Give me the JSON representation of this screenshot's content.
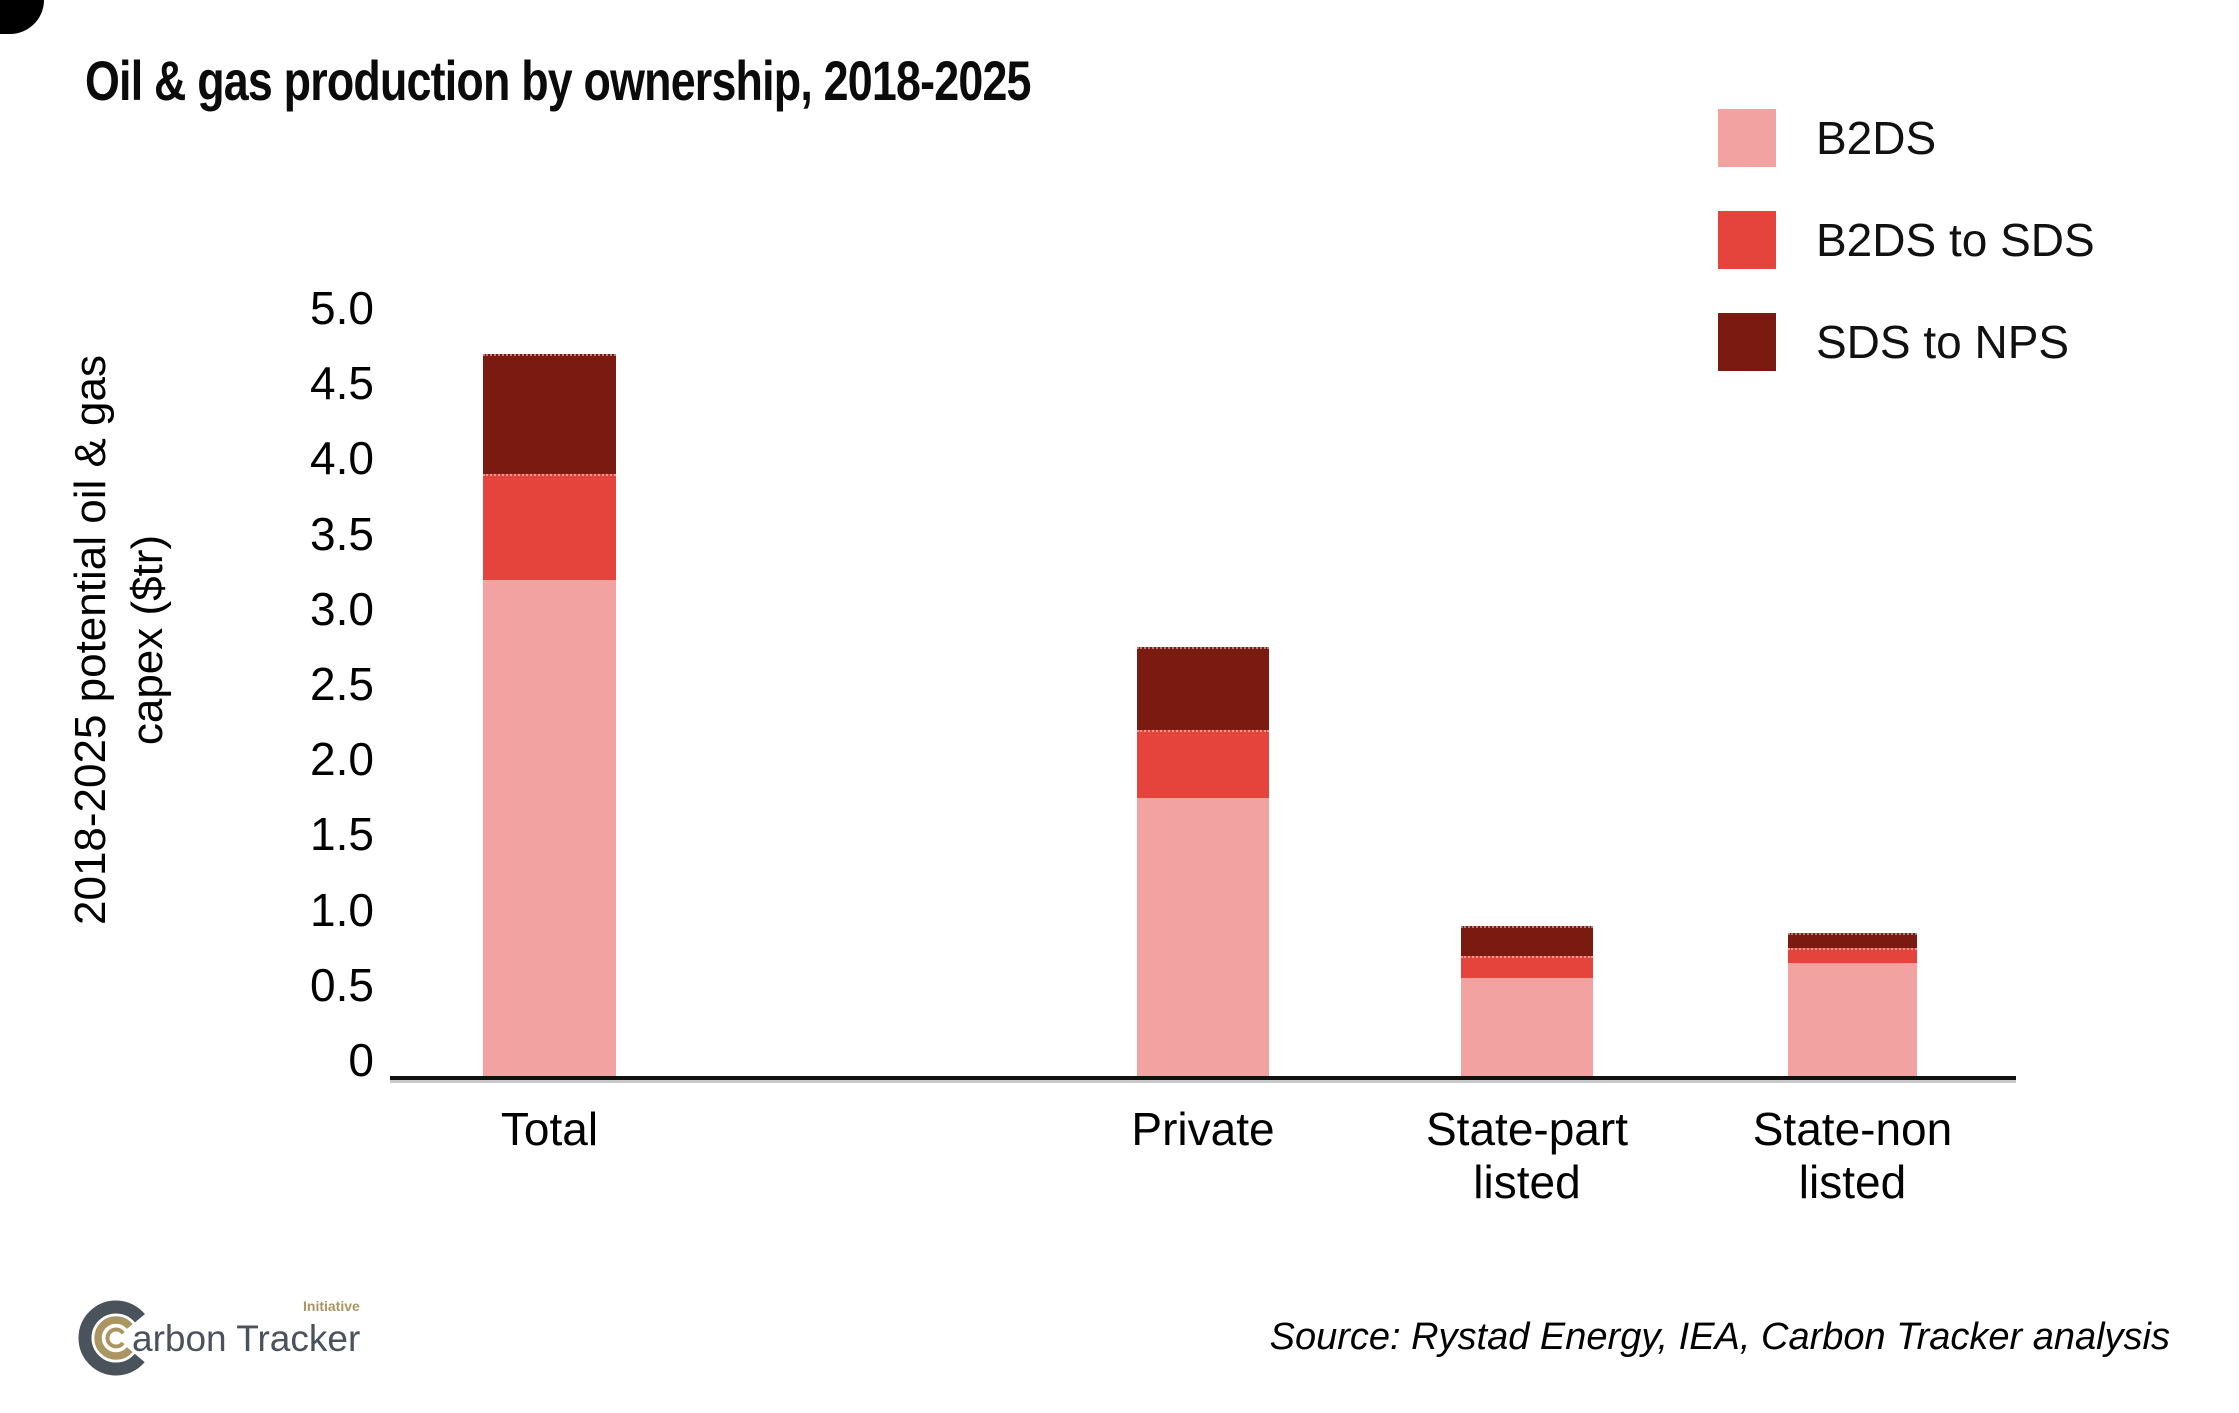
{
  "chart_data": {
    "type": "bar",
    "stacked": true,
    "title": "Oil & gas production by ownership, 2018-2025",
    "categories": [
      "Total",
      "Private",
      "State-part listed",
      "State-non listed"
    ],
    "series": [
      {
        "name": "B2DS",
        "color": "#F2A2A0",
        "values": [
          3.3,
          1.85,
          0.65,
          0.75
        ]
      },
      {
        "name": "B2DS to SDS",
        "color": "#E5443C",
        "values": [
          0.7,
          0.45,
          0.15,
          0.1
        ]
      },
      {
        "name": "SDS to NPS",
        "color": "#7A1A11",
        "values": [
          0.8,
          0.55,
          0.2,
          0.1
        ]
      }
    ],
    "stack_totals": [
      4.8,
      2.85,
      1.0,
      0.95
    ],
    "ylabel": "2018-2025 potential oil & gas capex ($tr)",
    "ylabel_lines": [
      "2018-2025 potential oil & gas",
      "capex ($tr)"
    ],
    "ylim": [
      0,
      5
    ],
    "ytick_step": 0.5,
    "ytick_labels": [
      "5.0",
      "4.5",
      "4.0",
      "3.5",
      "3.0",
      "2.5",
      "2.0",
      "1.5",
      "1.0",
      "0.5",
      "0"
    ],
    "grid": false,
    "legend_position": "top-right"
  },
  "footer": {
    "source": "Source: Rystad Energy, IEA, Carbon Tracker analysis",
    "logo": {
      "brand": "Carbon Tracker",
      "mark_text": "arbon Tracker",
      "initiative": "Initiative",
      "slate_color": "#4A525C",
      "gold_color": "#AB9662"
    }
  }
}
